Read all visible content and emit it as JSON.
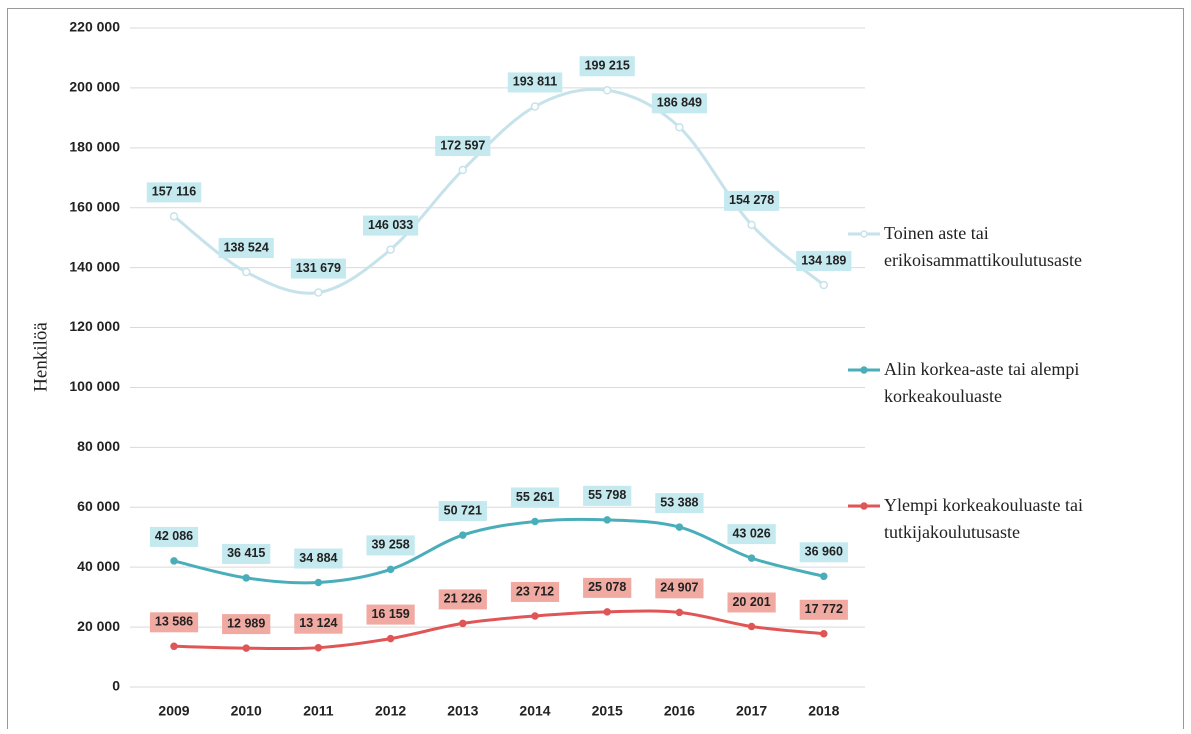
{
  "chart_data": {
    "type": "line",
    "y_label": "Henkilöä",
    "categories": [
      "2009",
      "2010",
      "2011",
      "2012",
      "2013",
      "2014",
      "2015",
      "2016",
      "2017",
      "2018"
    ],
    "series": [
      {
        "name": "Toinen aste tai erikoisammattikoulutusaste",
        "color": "#c6e2eb",
        "label_bg": "#c4e9ef",
        "marker": "hollow",
        "values": [
          157116,
          138524,
          131679,
          146033,
          172597,
          193811,
          199215,
          186849,
          154278,
          134189
        ],
        "value_labels": [
          "157 116",
          "138 524",
          "131 679",
          "146 033",
          "172 597",
          "193 811",
          "199 215",
          "186 849",
          "154 278",
          "134 189"
        ]
      },
      {
        "name": "Alin korkea-aste tai alempi korkeakouluaste",
        "color": "#4aaeba",
        "label_bg": "#c4e9ef",
        "marker": "filled",
        "values": [
          42086,
          36415,
          34884,
          39258,
          50721,
          55261,
          55798,
          53388,
          43026,
          36960
        ],
        "value_labels": [
          "42 086",
          "36 415",
          "34 884",
          "39 258",
          "50 721",
          "55 261",
          "55 798",
          "53 388",
          "43 026",
          "36 960"
        ]
      },
      {
        "name": "Ylempi korkeakouluaste tai tutkijakoulutusaste",
        "color": "#e05555",
        "label_bg": "#f0aaa2",
        "marker": "filled",
        "values": [
          13586,
          12989,
          13124,
          16159,
          21226,
          23712,
          25078,
          24907,
          20201,
          17772
        ],
        "value_labels": [
          "13 586",
          "12 989",
          "13 124",
          "16 159",
          "21 226",
          "23 712",
          "25 078",
          "24 907",
          "20 201",
          "17 772"
        ]
      }
    ],
    "ylim": [
      0,
      220000
    ],
    "yticks": [
      {
        "value": 0,
        "label": "0"
      },
      {
        "value": 20000,
        "label": "20 000"
      },
      {
        "value": 40000,
        "label": "40 000"
      },
      {
        "value": 60000,
        "label": "60 000"
      },
      {
        "value": 80000,
        "label": "80 000"
      },
      {
        "value": 100000,
        "label": "100 000"
      },
      {
        "value": 120000,
        "label": "120 000"
      },
      {
        "value": 140000,
        "label": "140 000"
      },
      {
        "value": 160000,
        "label": "160 000"
      },
      {
        "value": 180000,
        "label": "180 000"
      },
      {
        "value": 200000,
        "label": "200 000"
      },
      {
        "value": 220000,
        "label": "220 000"
      }
    ],
    "grid": true,
    "legend": "right"
  }
}
